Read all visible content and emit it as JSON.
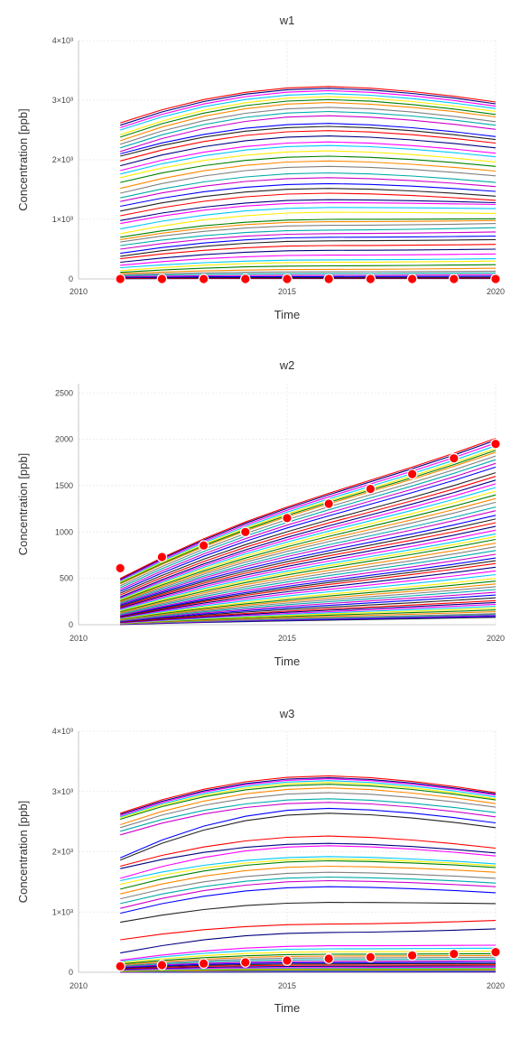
{
  "chart_data": [
    {
      "type": "line",
      "title": "w1",
      "xlabel": "Time",
      "ylabel": "Concentration [ppb]",
      "xlim": [
        2010,
        2020
      ],
      "ylim": [
        0,
        4000
      ],
      "x_ticks": [
        2010,
        2015,
        2020
      ],
      "x_tick_labels": [
        "2010",
        "2015",
        "2020"
      ],
      "y_ticks": [
        0,
        1000,
        2000,
        3000,
        4000
      ],
      "y_tick_labels": [
        "0",
        "1×10³",
        "2×10³",
        "3×10³",
        "4×10³"
      ],
      "grid": true,
      "legend": "none",
      "x": [
        2011,
        2012,
        2013,
        2014,
        2015,
        2016,
        2017,
        2018,
        2019,
        2020
      ],
      "ensemble_series": {
        "count": 50,
        "peak_x": 2016,
        "start_values": [
          2620,
          2580,
          2540,
          2500,
          2420,
          2380,
          2320,
          2260,
          2200,
          2140,
          2100,
          2060,
          1980,
          1900,
          1820,
          1760,
          1700,
          1620,
          1520,
          1440,
          1360,
          1300,
          1220,
          1140,
          1060,
          980,
          930,
          840,
          760,
          700,
          660,
          620,
          560,
          500,
          430,
          380,
          340,
          280,
          230,
          190,
          140,
          110,
          90,
          70,
          55,
          40,
          30,
          20,
          10,
          5
        ],
        "peak_values": [
          3230,
          3200,
          3160,
          3110,
          3060,
          3010,
          2960,
          2880,
          2810,
          2740,
          2610,
          2560,
          2490,
          2400,
          2300,
          2240,
          2150,
          2060,
          1980,
          1890,
          1780,
          1700,
          1600,
          1520,
          1440,
          1330,
          1280,
          1200,
          1120,
          1000,
          960,
          900,
          820,
          760,
          700,
          640,
          560,
          480,
          400,
          320,
          280,
          220,
          160,
          120,
          90,
          60,
          40,
          25,
          15,
          8
        ],
        "end_values": [
          2970,
          2940,
          2900,
          2860,
          2810,
          2760,
          2720,
          2640,
          2580,
          2510,
          2390,
          2340,
          2280,
          2200,
          2110,
          2050,
          1960,
          1890,
          1810,
          1730,
          1620,
          1550,
          1470,
          1390,
          1320,
          1280,
          1250,
          1180,
          1100,
          1010,
          980,
          930,
          860,
          790,
          720,
          660,
          580,
          500,
          420,
          340,
          300,
          240,
          180,
          130,
          100,
          70,
          45,
          28,
          16,
          9
        ]
      },
      "observations": [
        {
          "x": 2011,
          "y": 0
        },
        {
          "x": 2012,
          "y": 0
        },
        {
          "x": 2013,
          "y": 0
        },
        {
          "x": 2014,
          "y": 0
        },
        {
          "x": 2015,
          "y": 0
        },
        {
          "x": 2016,
          "y": 0
        },
        {
          "x": 2017,
          "y": 0
        },
        {
          "x": 2018,
          "y": 0
        },
        {
          "x": 2019,
          "y": 0
        },
        {
          "x": 2020,
          "y": 0
        }
      ]
    },
    {
      "type": "line",
      "title": "w2",
      "xlabel": "Time",
      "ylabel": "Concentration [ppb]",
      "xlim": [
        2010,
        2020
      ],
      "ylim": [
        0,
        2600
      ],
      "x_ticks": [
        2010,
        2015,
        2020
      ],
      "x_tick_labels": [
        "2010",
        "2015",
        "2020"
      ],
      "y_ticks": [
        0,
        500,
        1000,
        1500,
        2000,
        2500
      ],
      "y_tick_labels": [
        "0",
        "500",
        "1000",
        "1500",
        "2000",
        "2500"
      ],
      "grid": true,
      "legend": "none",
      "x": [
        2011,
        2012,
        2013,
        2014,
        2015,
        2016,
        2017,
        2018,
        2019,
        2020
      ],
      "ensemble_series": {
        "count": 60,
        "start_values": [
          500,
          490,
          480,
          470,
          460,
          450,
          440,
          420,
          400,
          380,
          360,
          340,
          320,
          300,
          290,
          280,
          270,
          260,
          250,
          240,
          230,
          220,
          210,
          200,
          190,
          180,
          170,
          160,
          150,
          140,
          130,
          120,
          110,
          100,
          95,
          90,
          85,
          80,
          75,
          70,
          65,
          60,
          55,
          50,
          45,
          40,
          36,
          32,
          28,
          24,
          20,
          18,
          16,
          14,
          12,
          10,
          8,
          6,
          4,
          2
        ],
        "end_values": [
          2010,
          1990,
          1960,
          1930,
          1900,
          1880,
          1860,
          1820,
          1780,
          1740,
          1700,
          1640,
          1600,
          1560,
          1520,
          1480,
          1440,
          1400,
          1360,
          1320,
          1270,
          1230,
          1180,
          1140,
          1100,
          1060,
          1020,
          980,
          950,
          920,
          880,
          840,
          800,
          760,
          720,
          690,
          660,
          620,
          580,
          540,
          500,
          470,
          440,
          410,
          380,
          350,
          320,
          290,
          260,
          240,
          220,
          200,
          180,
          160,
          140,
          120,
          110,
          100,
          90,
          80
        ]
      },
      "observations": [
        {
          "x": 2011,
          "y": 610
        },
        {
          "x": 2012,
          "y": 730
        },
        {
          "x": 2013,
          "y": 855
        },
        {
          "x": 2014,
          "y": 1000
        },
        {
          "x": 2015,
          "y": 1150
        },
        {
          "x": 2016,
          "y": 1305
        },
        {
          "x": 2017,
          "y": 1465
        },
        {
          "x": 2018,
          "y": 1625
        },
        {
          "x": 2019,
          "y": 1795
        },
        {
          "x": 2020,
          "y": 1950
        }
      ]
    },
    {
      "type": "line",
      "title": "w3",
      "xlabel": "Time",
      "ylabel": "Concentration [ppb]",
      "xlim": [
        2010,
        2020
      ],
      "ylim": [
        0,
        4000
      ],
      "x_ticks": [
        2010,
        2015,
        2020
      ],
      "x_tick_labels": [
        "2010",
        "2015",
        "2020"
      ],
      "y_ticks": [
        0,
        1000,
        2000,
        3000,
        4000
      ],
      "y_tick_labels": [
        "0",
        "1×10³",
        "2×10³",
        "3×10³",
        "4×10³"
      ],
      "grid": true,
      "legend": "none",
      "x": [
        2011,
        2012,
        2013,
        2014,
        2015,
        2016,
        2017,
        2018,
        2019,
        2020
      ],
      "ensemble_series": {
        "count": 48,
        "peak_x": 2016,
        "start_values": [
          2640,
          2620,
          2600,
          2580,
          2560,
          2540,
          2450,
          2400,
          2340,
          2280,
          1900,
          1860,
          1760,
          1720,
          1560,
          1520,
          1460,
          1380,
          1300,
          1220,
          1140,
          1060,
          980,
          830,
          540,
          320,
          200,
          180,
          160,
          140,
          125,
          110,
          100,
          90,
          80,
          70,
          60,
          50,
          40,
          34,
          28,
          22,
          17,
          12,
          8,
          5,
          3,
          1
        ],
        "peak_values": [
          3260,
          3230,
          3210,
          3180,
          3150,
          3120,
          3060,
          2980,
          2880,
          2820,
          2720,
          2640,
          2260,
          2140,
          2100,
          1920,
          1880,
          1850,
          1760,
          1660,
          1580,
          1520,
          1420,
          1160,
          800,
          660,
          440,
          390,
          340,
          300,
          270,
          240,
          210,
          180,
          160,
          140,
          120,
          100,
          80,
          70,
          60,
          50,
          40,
          30,
          20,
          14,
          8,
          4
        ],
        "end_values": [
          2980,
          2960,
          2940,
          2910,
          2880,
          2860,
          2800,
          2740,
          2650,
          2580,
          2480,
          2400,
          2060,
          1980,
          1930,
          1800,
          1770,
          1740,
          1660,
          1560,
          1480,
          1420,
          1320,
          1140,
          860,
          720,
          450,
          400,
          350,
          310,
          280,
          250,
          220,
          190,
          165,
          145,
          125,
          105,
          85,
          72,
          62,
          52,
          42,
          32,
          22,
          15,
          9,
          4
        ]
      },
      "observations": [
        {
          "x": 2011,
          "y": 100
        },
        {
          "x": 2012,
          "y": 120
        },
        {
          "x": 2013,
          "y": 145
        },
        {
          "x": 2014,
          "y": 165
        },
        {
          "x": 2015,
          "y": 195
        },
        {
          "x": 2016,
          "y": 225
        },
        {
          "x": 2017,
          "y": 250
        },
        {
          "x": 2018,
          "y": 280
        },
        {
          "x": 2019,
          "y": 305
        },
        {
          "x": 2020,
          "y": 335
        }
      ]
    }
  ],
  "colors": {
    "line_palette": [
      "#ff0000",
      "#000080",
      "#ff00ff",
      "#00c8ff",
      "#ffee00",
      "#008000",
      "#ff8800",
      "#808080",
      "#00aaaa",
      "#cc00cc",
      "#0000ff",
      "#222222"
    ],
    "marker_fill": "#ff0000",
    "marker_stroke": "#ffffff"
  }
}
